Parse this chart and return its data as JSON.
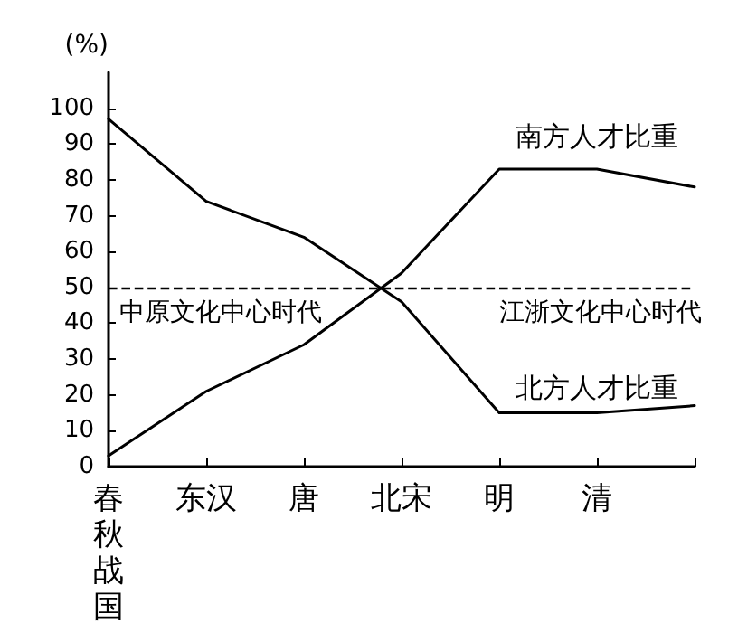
{
  "chart_data": {
    "type": "line",
    "ylabel": "(%)",
    "categories": [
      "春秋战国",
      "东汉",
      "唐",
      "北宋",
      "明",
      "清",
      null
    ],
    "series": [
      {
        "name": "南方人才比重",
        "color": "#000000",
        "values": [
          3,
          21,
          34,
          54,
          83,
          83,
          78
        ]
      },
      {
        "name": "北方人才比重",
        "color": "#000000",
        "values": [
          97,
          74,
          64,
          46,
          15,
          15,
          17
        ]
      }
    ],
    "ylim": [
      0,
      110
    ],
    "yticks": [
      0,
      10,
      20,
      30,
      40,
      50,
      60,
      70,
      80,
      90,
      100
    ],
    "ref_lines": [
      {
        "axis": "y",
        "value": 50,
        "line_style": "dashed",
        "color": "#000000"
      }
    ],
    "annotations": [
      "中原文化中心时代",
      "江浙文化中心时代"
    ],
    "grid": false,
    "legend": false,
    "marker": "none",
    "line_style": "solid"
  }
}
